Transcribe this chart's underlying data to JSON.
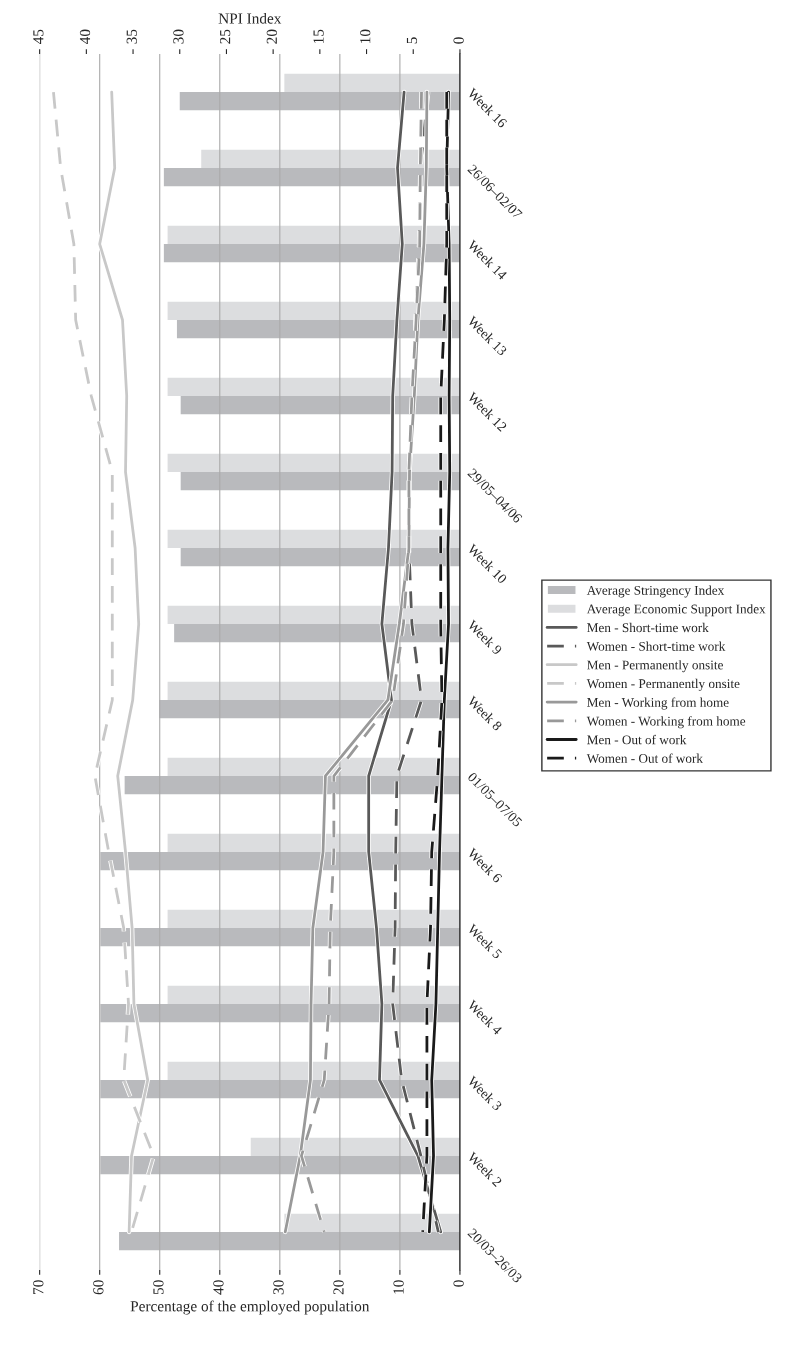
{
  "chart_data": {
    "type": "bar",
    "orientation": "horizontal",
    "categories": [
      "Week 16",
      "26/06–02/07",
      "Week 14",
      "Week 13",
      "Week 12",
      "29/05–04/06",
      "Week 10",
      "Week 9",
      "Week 8",
      "01/05–07/05",
      "Week 6",
      "Week 5",
      "Week 4",
      "Week 3",
      "Week 2",
      "20/03–26/03"
    ],
    "series": [
      {
        "name": "Average Stringency Index",
        "axis": "x2",
        "color": "#b9babd",
        "values": [
          30.0,
          31.7,
          31.7,
          30.3,
          29.9,
          29.9,
          29.9,
          30.6,
          32.2,
          35.9,
          38.5,
          38.5,
          38.5,
          38.5,
          38.5,
          36.5
        ]
      },
      {
        "name": "Average Economic Support Index",
        "axis": "x2",
        "color": "#dcdddf",
        "values": [
          18.8,
          27.7,
          31.3,
          31.3,
          31.3,
          31.3,
          31.3,
          31.3,
          31.3,
          31.3,
          31.3,
          31.3,
          31.3,
          31.3,
          22.4,
          18.8
        ]
      },
      {
        "name": "Men - Short-time work",
        "type": "line",
        "line_style": "solid",
        "color": "#595959",
        "values": [
          9.3,
          10.4,
          9.6,
          10.5,
          11.2,
          11.3,
          11.9,
          13.0,
          11.4,
          15.2,
          15.2,
          13.9,
          13.0,
          13.4,
          7.0,
          3.2
        ]
      },
      {
        "name": "Women - Short-time work",
        "type": "line",
        "line_style": "dashed",
        "color": "#595959",
        "values": [
          5.3,
          6.6,
          6.8,
          7.4,
          7.8,
          8.5,
          8.5,
          8.0,
          6.4,
          10.5,
          10.7,
          10.8,
          11.2,
          9.7,
          6.5,
          3.6
        ]
      },
      {
        "name": "Men - Permanently onsite",
        "type": "line",
        "line_style": "solid",
        "color": "#c8c8c8",
        "values": [
          58.0,
          57.5,
          60.0,
          56.2,
          55.5,
          55.7,
          54.1,
          53.5,
          54.5,
          57.0,
          55.7,
          54.6,
          54.3,
          52.0,
          54.7,
          55.1
        ]
      },
      {
        "name": "Women - Permanently onsite",
        "type": "line",
        "line_style": "dashed",
        "color": "#c8c8c8",
        "values": [
          67.7,
          66.5,
          64.3,
          64.0,
          61.4,
          57.9,
          57.9,
          57.9,
          57.9,
          60.8,
          58.5,
          56.0,
          55.2,
          56.0,
          51.0,
          54.7
        ]
      },
      {
        "name": "Men - Working from home",
        "type": "line",
        "line_style": "solid",
        "color": "#999999",
        "values": [
          5.5,
          5.6,
          6.0,
          7.0,
          7.6,
          8.4,
          8.5,
          10.1,
          12.0,
          22.4,
          22.8,
          24.5,
          24.8,
          24.9,
          26.6,
          29.1
        ]
      },
      {
        "name": "Women - Working from home",
        "type": "line",
        "line_style": "dashed",
        "color": "#999999",
        "values": [
          6.4,
          6.6,
          6.7,
          7.3,
          8.0,
          8.5,
          8.5,
          9.4,
          11.2,
          21.0,
          21.0,
          21.6,
          21.8,
          22.6,
          26.4,
          22.6
        ]
      },
      {
        "name": "Men - Out of work",
        "type": "line",
        "line_style": "solid",
        "color": "#1a1a1a",
        "values": [
          1.9,
          2.2,
          1.8,
          1.7,
          1.8,
          1.7,
          2.0,
          1.9,
          2.6,
          3.0,
          3.4,
          3.7,
          4.0,
          4.7,
          4.4,
          5.1
        ]
      },
      {
        "name": "Women - Out of work",
        "type": "line",
        "line_style": "dashed",
        "color": "#1a1a1a",
        "values": [
          2.2,
          2.2,
          2.2,
          2.6,
          3.2,
          3.2,
          3.2,
          3.2,
          3.0,
          3.7,
          4.7,
          4.9,
          5.5,
          5.5,
          5.5,
          6.2
        ]
      }
    ],
    "xlabel": "Percentage of the employed population",
    "x2label": "NPI Index",
    "xlim": [
      70,
      0
    ],
    "xticks": [
      0,
      10,
      20,
      30,
      40,
      50,
      60,
      70
    ],
    "x2lim": [
      45,
      0
    ],
    "x2ticks": [
      0,
      5,
      10,
      15,
      20,
      25,
      30,
      35,
      40,
      45
    ],
    "grid": "x",
    "legend": "right"
  }
}
